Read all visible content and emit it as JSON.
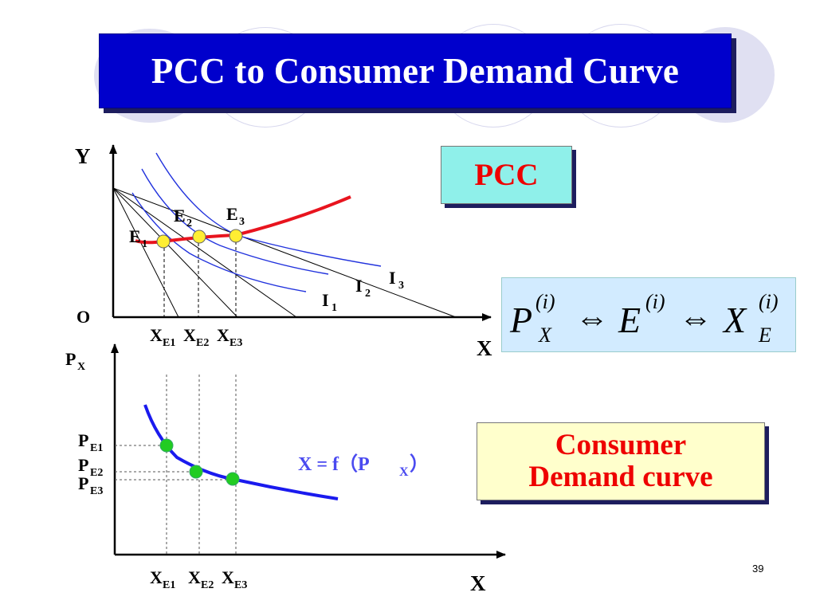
{
  "slide": {
    "title": "PCC to Consumer Demand Curve",
    "page_number": "39"
  },
  "pcc_label": "PCC",
  "formula": {
    "p": "P",
    "p_sub": "X",
    "p_sup": "(i)",
    "e": "E",
    "e_sup": "(i)",
    "x": "X",
    "x_sub": "E",
    "x_sup": "(i)",
    "arrow": "⇔"
  },
  "demand_label": {
    "line1": "Consumer",
    "line2": "Demand curve"
  },
  "top_graph": {
    "y_axis": "Y",
    "x_axis": "X",
    "origin": "O",
    "equilibria": [
      {
        "base": "E",
        "sub": "1"
      },
      {
        "base": "E",
        "sub": "2"
      },
      {
        "base": "E",
        "sub": "3"
      }
    ],
    "indifference": [
      {
        "base": "I",
        "sub": "1"
      },
      {
        "base": "I",
        "sub": "2"
      },
      {
        "base": "I",
        "sub": "3"
      }
    ],
    "x_ticks": [
      {
        "base": "X",
        "sub": "E1"
      },
      {
        "base": "X",
        "sub": "E2"
      },
      {
        "base": "X",
        "sub": "E3"
      }
    ],
    "colors": {
      "pcc_curve": "#e8141e",
      "indifference": "#2233dd",
      "points": "#ffee33"
    }
  },
  "bottom_graph": {
    "y_axis": {
      "base": "P",
      "sub": "X"
    },
    "x_axis": "X",
    "price_ticks": [
      {
        "base": "P",
        "sub": "E1"
      },
      {
        "base": "P",
        "sub": "E2"
      },
      {
        "base": "P",
        "sub": "E3"
      }
    ],
    "x_ticks": [
      {
        "base": "X",
        "sub": "E1"
      },
      {
        "base": "X",
        "sub": "E2"
      },
      {
        "base": "X",
        "sub": "E3"
      }
    ],
    "equation": {
      "left": "X = f（P",
      "sub": "X",
      "right": "）"
    },
    "colors": {
      "demand_curve": "#1a1aee",
      "points": "#22cc22"
    }
  }
}
